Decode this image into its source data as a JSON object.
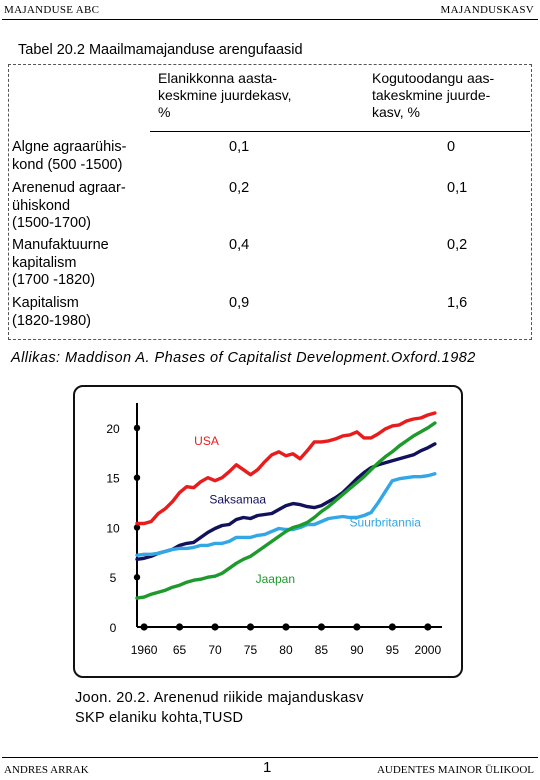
{
  "header": {
    "left": "MAJANDUSE ABC",
    "right": "MAJANDUSKASV"
  },
  "table": {
    "title": "Tabel 20.2 Maailmamajanduse arengufaasid",
    "col1_header": "Elanikkonna aasta-\nkeskmine juurdekasv,\n%",
    "col2_header": "Kogutoodangu aas-\ntakeskmine juurde-\nkasv, %",
    "rows": [
      {
        "label": "Algne agraarühis-\nkond (500 -1500)",
        "pop": "0,1",
        "output": "0"
      },
      {
        "label": "Arenenud agraar-\nühiskond\n(1500-1700)",
        "pop": "0,2",
        "output": "0,1"
      },
      {
        "label": "Manufaktuurne\nkapitalism\n(1700 -1820)",
        "pop": "0,4",
        "output": "0,2"
      },
      {
        "label": "Kapitalism\n(1820-1980)",
        "pop": "0,9",
        "output": "1,6"
      }
    ]
  },
  "source": "Allikas: Maddison A. Phases of Capitalist Development.Oxford.1982",
  "chart_data": {
    "type": "line",
    "title": "",
    "xlabel": "",
    "ylabel": "",
    "x_ticks": [
      "1960",
      "65",
      "70",
      "75",
      "80",
      "85",
      "90",
      "95",
      "2000"
    ],
    "y_ticks": [
      "0",
      "5",
      "10",
      "15",
      "20"
    ],
    "xlim": [
      1959,
      2002
    ],
    "ylim": [
      0,
      21.5
    ],
    "grid": false,
    "series": [
      {
        "name": "USA",
        "color": "#e81c1c",
        "x": [
          1959,
          1960,
          1961,
          1962,
          1963,
          1964,
          1965,
          1966,
          1967,
          1968,
          1969,
          1970,
          1971,
          1972,
          1973,
          1974,
          1975,
          1976,
          1977,
          1978,
          1979,
          1980,
          1981,
          1982,
          1983,
          1984,
          1985,
          1986,
          1987,
          1988,
          1989,
          1990,
          1991,
          1992,
          1993,
          1994,
          1995,
          1996,
          1997,
          1998,
          1999,
          2000,
          2001
        ],
        "y": [
          10.4,
          10.4,
          10.6,
          11.4,
          11.9,
          12.6,
          13.5,
          14.1,
          14.0,
          14.6,
          15.0,
          14.7,
          15.0,
          15.6,
          16.3,
          15.8,
          15.3,
          15.8,
          16.6,
          17.3,
          17.6,
          17.2,
          17.4,
          16.9,
          17.7,
          18.6,
          18.6,
          18.7,
          18.9,
          19.2,
          19.3,
          19.6,
          19.0,
          19.0,
          19.4,
          19.9,
          20.2,
          20.3,
          20.7,
          20.9,
          21.0,
          21.3,
          21.5
        ]
      },
      {
        "name": "Saksamaa",
        "color": "#11115c",
        "x": [
          1959,
          1960,
          1961,
          1962,
          1963,
          1964,
          1965,
          1966,
          1967,
          1968,
          1969,
          1970,
          1971,
          1972,
          1973,
          1974,
          1975,
          1976,
          1977,
          1978,
          1979,
          1980,
          1981,
          1982,
          1983,
          1984,
          1985,
          1986,
          1987,
          1988,
          1989,
          1990,
          1991,
          1992,
          1993,
          1994,
          1995,
          1996,
          1997,
          1998,
          1999,
          2000,
          2001
        ],
        "y": [
          6.8,
          6.9,
          7.1,
          7.4,
          7.6,
          7.8,
          8.2,
          8.4,
          8.5,
          9.0,
          9.5,
          9.9,
          10.2,
          10.3,
          10.8,
          11.0,
          10.9,
          11.2,
          11.3,
          11.4,
          11.8,
          12.2,
          12.4,
          12.3,
          12.1,
          12.0,
          12.2,
          12.6,
          13.0,
          13.5,
          14.2,
          14.9,
          15.5,
          16.0,
          16.3,
          16.5,
          16.7,
          16.9,
          17.1,
          17.3,
          17.7,
          18.0,
          18.4
        ]
      },
      {
        "name": "Suurbritannia",
        "color": "#33a6e6",
        "x": [
          1959,
          1960,
          1961,
          1962,
          1963,
          1964,
          1965,
          1966,
          1967,
          1968,
          1969,
          1970,
          1971,
          1972,
          1973,
          1974,
          1975,
          1976,
          1977,
          1978,
          1979,
          1980,
          1981,
          1982,
          1983,
          1984,
          1985,
          1986,
          1987,
          1988,
          1989,
          1990,
          1991,
          1992,
          1993,
          1994,
          1995,
          1996,
          1997,
          1998,
          1999,
          2000,
          2001
        ],
        "y": [
          7.2,
          7.3,
          7.3,
          7.4,
          7.6,
          7.8,
          7.9,
          7.9,
          8.0,
          8.2,
          8.2,
          8.4,
          8.4,
          8.6,
          9.0,
          9.0,
          9.0,
          9.2,
          9.3,
          9.6,
          9.9,
          9.8,
          9.8,
          10.0,
          10.3,
          10.3,
          10.6,
          10.9,
          11.0,
          11.1,
          11.0,
          11.0,
          11.2,
          11.5,
          12.5,
          13.6,
          14.7,
          14.9,
          15.0,
          15.1,
          15.1,
          15.2,
          15.4
        ]
      },
      {
        "name": "Jaapan",
        "color": "#1d9a2b",
        "x": [
          1959,
          1960,
          1961,
          1962,
          1963,
          1964,
          1965,
          1966,
          1967,
          1968,
          1969,
          1970,
          1971,
          1972,
          1973,
          1974,
          1975,
          1976,
          1977,
          1978,
          1979,
          1980,
          1981,
          1982,
          1983,
          1984,
          1985,
          1986,
          1987,
          1988,
          1989,
          1990,
          1991,
          1992,
          1993,
          1994,
          1995,
          1996,
          1997,
          1998,
          1999,
          2000,
          2001
        ],
        "y": [
          2.9,
          3.0,
          3.3,
          3.5,
          3.7,
          4.0,
          4.2,
          4.5,
          4.7,
          4.8,
          5.0,
          5.1,
          5.4,
          5.9,
          6.4,
          6.8,
          7.1,
          7.6,
          8.1,
          8.6,
          9.1,
          9.6,
          10.0,
          10.2,
          10.5,
          11.0,
          11.6,
          12.1,
          12.7,
          13.3,
          13.9,
          14.5,
          15.1,
          15.8,
          16.5,
          17.1,
          17.6,
          18.2,
          18.7,
          19.2,
          19.6,
          20.0,
          20.5
        ]
      }
    ]
  },
  "caption": "Joon. 20.2. Arenenud riikide majanduskasv\nSKP elaniku kohta,TUSD",
  "footer": {
    "left": "ANDRES ARRAK",
    "page": "1",
    "right": "AUDENTES MAINOR ÜLIKOOL"
  }
}
